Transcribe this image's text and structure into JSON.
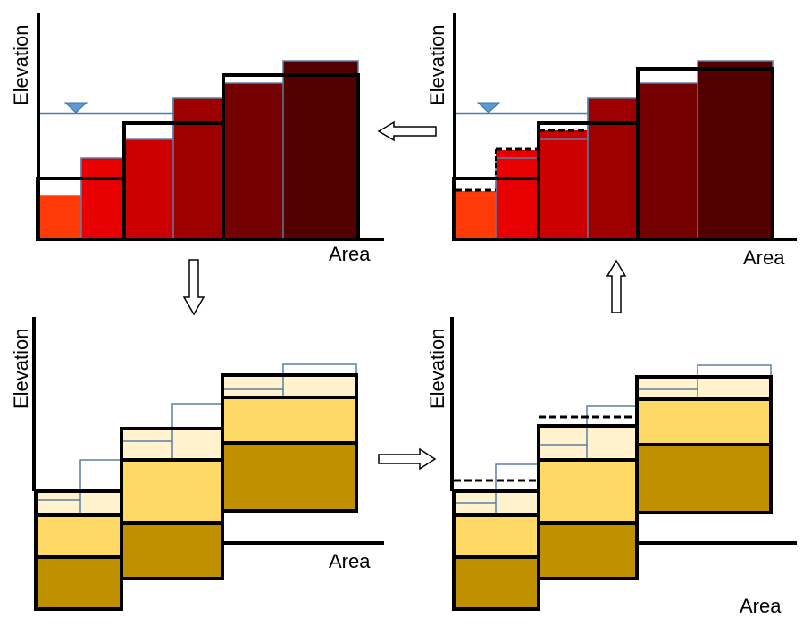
{
  "axis_labels": {
    "elevation": "Elevation",
    "area": "Area"
  },
  "colors": {
    "outline": "#000000",
    "water": "#4a7fb5",
    "thin_outline": "#5b7fa6",
    "red_1": "#ff3a06",
    "red_2": "#e80000",
    "red_3": "#cc0000",
    "red_4": "#9e0000",
    "red_5": "#750000",
    "red_6": "#520000",
    "sand_light": "#fff2cc",
    "sand_mid": "#ffd966",
    "sand_dark": "#bf9000"
  },
  "panels": [
    {
      "name": "top-left",
      "description_icon": "water-level-triangle-icon"
    },
    {
      "name": "top-right",
      "description_icon": "water-level-triangle-icon"
    },
    {
      "name": "bottom-left"
    },
    {
      "name": "bottom-right"
    }
  ],
  "arrows": [
    {
      "from": "top-right",
      "to": "top-left",
      "direction": "left"
    },
    {
      "from": "top-left",
      "to": "bottom-left",
      "direction": "down"
    },
    {
      "from": "bottom-left",
      "to": "bottom-right",
      "direction": "right"
    },
    {
      "from": "bottom-right",
      "to": "top-right",
      "direction": "up"
    }
  ]
}
